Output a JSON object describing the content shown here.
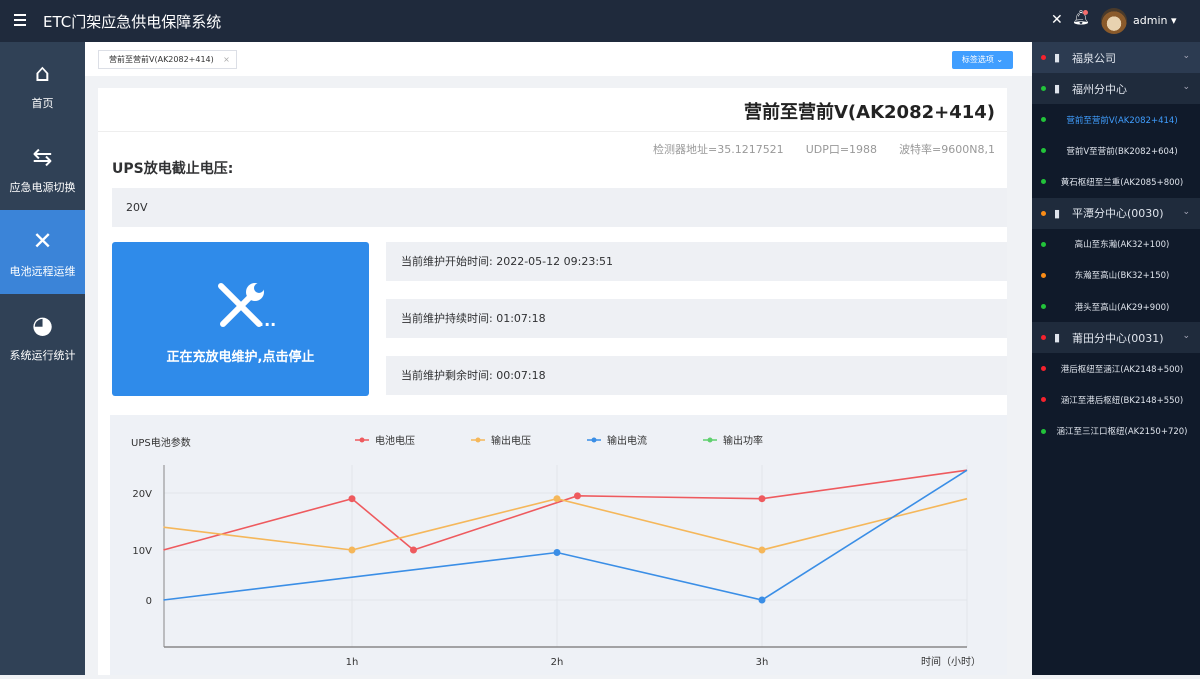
{
  "header": {
    "title": "ETC门架应急供电保障系统",
    "user": "admin",
    "icons": [
      "menu-icon",
      "fullscreen-icon",
      "bell-icon",
      "avatar"
    ]
  },
  "sidebar": {
    "items": [
      {
        "label": "首页",
        "icon": "home-icon"
      },
      {
        "label": "应急电源切换",
        "icon": "switch-arrows-icon"
      },
      {
        "label": "电池远程运维",
        "icon": "tools-icon",
        "active": true
      },
      {
        "label": "系统运行统计",
        "icon": "pie-chart-icon"
      }
    ]
  },
  "tabs": {
    "items": [
      {
        "label": "营前至营前V(AK2082+414)"
      }
    ],
    "options_button": "标签选项"
  },
  "main": {
    "title": "营前至营前V(AK2082+414)",
    "meta": {
      "detector": "检测器地址=35.1217521",
      "udp": "UDP口=1988",
      "baud": "波特率=9600N8,1"
    },
    "ups_label": "UPS放电截止电压:",
    "ups_value": "20V",
    "action_button": "正在充放电维护,点击停止",
    "action_dots": "...",
    "start_time": "当前维护开始时间:  2022-05-12   09:23:51",
    "duration": "当前维护持续时间:  01:07:18",
    "remaining": "当前维护剩余时间:  00:07:18"
  },
  "chart_data": {
    "type": "line",
    "title": "UPS电池参数",
    "xlabel": "时间（小时）",
    "x_ticks": [
      "1h",
      "2h",
      "3h"
    ],
    "y_ticks": [
      "0",
      "10V",
      "20V"
    ],
    "grid": true,
    "legend_position": "top",
    "series": [
      {
        "name": "电池电压",
        "color": "#ee5a5e",
        "points": [
          [
            0.08,
            10
          ],
          [
            1,
            19
          ],
          [
            1.3,
            10
          ],
          [
            2.1,
            19.5
          ],
          [
            3,
            19
          ],
          [
            4,
            24
          ]
        ]
      },
      {
        "name": "输出电压",
        "color": "#f5b75a",
        "points": [
          [
            0.08,
            14
          ],
          [
            1,
            10
          ],
          [
            2,
            19
          ],
          [
            3,
            10
          ],
          [
            4,
            19
          ]
        ]
      },
      {
        "name": "输出电流",
        "color": "#3a8ee6",
        "points": [
          [
            0.08,
            0
          ],
          [
            2,
            9.5
          ],
          [
            3,
            0
          ],
          [
            4,
            24
          ]
        ]
      },
      {
        "name": "输出功率",
        "color": "#5fd06e",
        "points": []
      }
    ]
  },
  "right_panel": {
    "groups": [
      {
        "name": "福泉公司",
        "status": "#f5222d",
        "items": []
      },
      {
        "name": "福州分中心",
        "status": "#22c33a",
        "items": [
          {
            "name": "营前至营前V(AK2082+414)",
            "status": "#22c33a",
            "active": true
          },
          {
            "name": "营前V至营前(BK2082+604)",
            "status": "#22c33a"
          },
          {
            "name": "黄石枢纽至兰重(AK2085+800)",
            "status": "#22c33a"
          }
        ]
      },
      {
        "name": "平潭分中心(0030)",
        "status": "#fa8c16",
        "items": [
          {
            "name": "高山至东瀚(AK32+100)",
            "status": "#22c33a"
          },
          {
            "name": "东瀚至高山(BK32+150)",
            "status": "#fa8c16"
          },
          {
            "name": "港头至高山(AK29+900)",
            "status": "#22c33a"
          }
        ]
      },
      {
        "name": "莆田分中心(0031)",
        "status": "#f5222d",
        "items": [
          {
            "name": "港后枢纽至涵江(AK2148+500)",
            "status": "#f5222d"
          },
          {
            "name": "涵江至港后枢纽(BK2148+550)",
            "status": "#f5222d"
          },
          {
            "name": "涵江至三江口枢纽(AK2150+720)",
            "status": "#22c33a"
          }
        ]
      }
    ]
  }
}
